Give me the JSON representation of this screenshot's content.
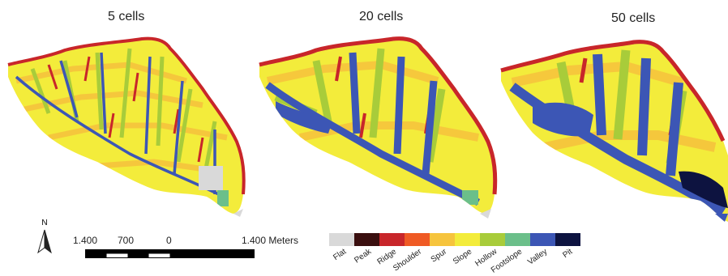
{
  "panels": [
    {
      "title": "5 cells"
    },
    {
      "title": "20 cells"
    },
    {
      "title": "50 cells"
    }
  ],
  "north_arrow": {
    "label": "N"
  },
  "scale_bar": {
    "labels": [
      "1.400",
      "700",
      "0",
      "1.400 Meters"
    ]
  },
  "legend": {
    "classes": [
      {
        "label": "Flat",
        "color": "#d9d9d9"
      },
      {
        "label": "Peak",
        "color": "#3a0f0f"
      },
      {
        "label": "Ridge",
        "color": "#c8262a"
      },
      {
        "label": "Shoulder",
        "color": "#ef5a24"
      },
      {
        "label": "Spur",
        "color": "#f6c43d"
      },
      {
        "label": "Slope",
        "color": "#f3ec3b"
      },
      {
        "label": "Hollow",
        "color": "#a8cc3a"
      },
      {
        "label": "Footslope",
        "color": "#6bbf8a"
      },
      {
        "label": "Valley",
        "color": "#3c56b5"
      },
      {
        "label": "Pit",
        "color": "#0d1340"
      }
    ]
  }
}
